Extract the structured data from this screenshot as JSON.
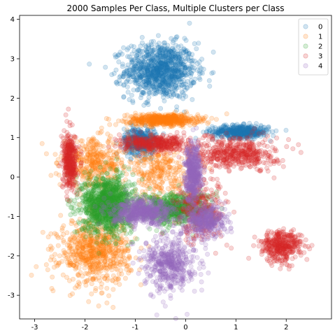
{
  "chart_data": {
    "type": "scatter",
    "title": "2000 Samples Per Class, Multiple Clusters per Class",
    "xlabel": "",
    "ylabel": "",
    "xlim": [
      -3.3,
      2.9
    ],
    "ylim": [
      -3.6,
      4.1
    ],
    "xticks": [
      -3,
      -2,
      -1,
      0,
      1,
      2
    ],
    "yticks": [
      -3,
      -2,
      -1,
      0,
      1,
      2,
      3,
      4
    ],
    "grid": false,
    "legend_position": "top-right",
    "marker_alpha": 0.2,
    "samples_per_class": 2000,
    "series": [
      {
        "name": "0",
        "color": "#1f77b4",
        "clusters": [
          {
            "cx": -0.5,
            "cy": 2.7,
            "sx": 0.35,
            "sy": 0.35,
            "n": 1000
          },
          {
            "cx": 1.1,
            "cy": 1.15,
            "sx": 0.28,
            "sy": 0.08,
            "n": 500
          },
          {
            "cx": -0.9,
            "cy": 0.9,
            "sx": 0.16,
            "sy": 0.17,
            "n": 500
          }
        ]
      },
      {
        "name": "1",
        "color": "#ff7f0e",
        "clusters": [
          {
            "cx": -0.45,
            "cy": 1.45,
            "sx": 0.35,
            "sy": 0.07,
            "n": 600
          },
          {
            "cx": -1.8,
            "cy": 0.35,
            "sx": 0.35,
            "sy": 0.3,
            "n": 400
          },
          {
            "cx": -1.8,
            "cy": -1.9,
            "sx": 0.35,
            "sy": 0.4,
            "n": 700
          },
          {
            "cx": -0.5,
            "cy": 0.1,
            "sx": 0.3,
            "sy": 0.35,
            "n": 300
          }
        ]
      },
      {
        "name": "2",
        "color": "#2ca02c",
        "clusters": [
          {
            "cx": -1.55,
            "cy": -0.7,
            "sx": 0.25,
            "sy": 0.35,
            "n": 1300
          },
          {
            "cx": -0.2,
            "cy": -0.8,
            "sx": 0.35,
            "sy": 0.2,
            "n": 700
          }
        ]
      },
      {
        "name": "3",
        "color": "#d62728",
        "clusters": [
          {
            "cx": -2.3,
            "cy": 0.4,
            "sx": 0.07,
            "sy": 0.35,
            "n": 400
          },
          {
            "cx": -0.6,
            "cy": 0.85,
            "sx": 0.35,
            "sy": 0.1,
            "n": 400
          },
          {
            "cx": 1.0,
            "cy": 0.6,
            "sx": 0.4,
            "sy": 0.2,
            "n": 500
          },
          {
            "cx": 0.3,
            "cy": -0.8,
            "sx": 0.25,
            "sy": 0.4,
            "n": 300
          },
          {
            "cx": 1.9,
            "cy": -1.75,
            "sx": 0.2,
            "sy": 0.2,
            "n": 400
          }
        ]
      },
      {
        "name": "4",
        "color": "#9467bd",
        "clusters": [
          {
            "cx": -0.85,
            "cy": -0.9,
            "sx": 0.3,
            "sy": 0.15,
            "n": 600
          },
          {
            "cx": 0.15,
            "cy": 0.1,
            "sx": 0.08,
            "sy": 0.35,
            "n": 500
          },
          {
            "cx": 0.4,
            "cy": -1.1,
            "sx": 0.2,
            "sy": 0.2,
            "n": 400
          },
          {
            "cx": -0.3,
            "cy": -2.2,
            "sx": 0.25,
            "sy": 0.35,
            "n": 500
          }
        ]
      }
    ]
  }
}
